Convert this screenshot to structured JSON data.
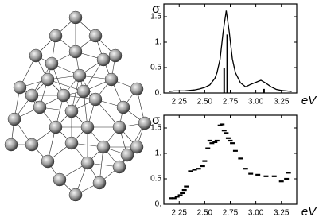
{
  "chart_data": [
    {
      "type": "line",
      "x": [
        2.15,
        2.2,
        2.25,
        2.3,
        2.35,
        2.4,
        2.45,
        2.5,
        2.55,
        2.6,
        2.62,
        2.65,
        2.68,
        2.71,
        2.74,
        2.77,
        2.8,
        2.85,
        2.9,
        2.95,
        3.0,
        3.05,
        3.1,
        3.15,
        3.2,
        3.25,
        3.3,
        3.35
      ],
      "values": [
        0.03,
        0.04,
        0.04,
        0.04,
        0.05,
        0.06,
        0.08,
        0.11,
        0.16,
        0.29,
        0.4,
        0.67,
        1.2,
        1.62,
        1.2,
        0.67,
        0.4,
        0.2,
        0.12,
        0.17,
        0.21,
        0.25,
        0.19,
        0.12,
        0.07,
        0.05,
        0.04,
        0.03
      ],
      "stick_x": [
        2.69,
        2.72,
        3.08
      ],
      "stick_values": [
        0.5,
        1.15,
        0.08
      ],
      "color": "#000000",
      "xlim": [
        2.1,
        3.4
      ],
      "ylim": [
        0,
        1.75
      ],
      "xticks": [
        2.25,
        {
          "value": 2.5,
          "label": "2.50"
        },
        2.75,
        {
          "value": 3.0,
          "label": "3.00"
        },
        3.25
      ],
      "yticks": [
        {
          "value": 0,
          "label": "0."
        },
        0.5,
        {
          "value": 1,
          "label": "1."
        },
        1.5
      ],
      "x_label": "eV",
      "y_label": "σ"
    },
    {
      "type": "scatter",
      "x": [
        2.17,
        2.2,
        2.23,
        2.26,
        2.28,
        2.3,
        2.32,
        2.36,
        2.4,
        2.44,
        2.48,
        2.5,
        2.53,
        2.55,
        2.57,
        2.6,
        2.62,
        2.65,
        2.67,
        2.69,
        2.71,
        2.73,
        2.75,
        2.77,
        2.8,
        2.85,
        2.9,
        2.95,
        3.02,
        3.1,
        3.18,
        3.25,
        3.3,
        3.32
      ],
      "values": [
        0.12,
        0.12,
        0.15,
        0.18,
        0.22,
        0.28,
        0.35,
        0.65,
        0.68,
        0.7,
        0.75,
        0.85,
        1.1,
        1.25,
        1.2,
        1.22,
        1.25,
        1.55,
        1.57,
        1.45,
        1.4,
        1.3,
        1.25,
        1.2,
        1.05,
        0.9,
        0.7,
        0.6,
        0.58,
        0.55,
        0.55,
        0.45,
        0.5,
        0.62
      ],
      "color": "#000000",
      "xlim": [
        2.1,
        3.4
      ],
      "ylim": [
        0,
        1.75
      ],
      "xticks": [
        2.25,
        {
          "value": 2.5,
          "label": "2.50"
        },
        2.75,
        {
          "value": 3.0,
          "label": "3.00"
        },
        3.25
      ],
      "yticks": [
        {
          "value": 0,
          "label": "0."
        },
        0.5,
        {
          "value": 1,
          "label": "1."
        },
        1.5
      ],
      "x_label": "eV",
      "y_label": "σ"
    }
  ]
}
